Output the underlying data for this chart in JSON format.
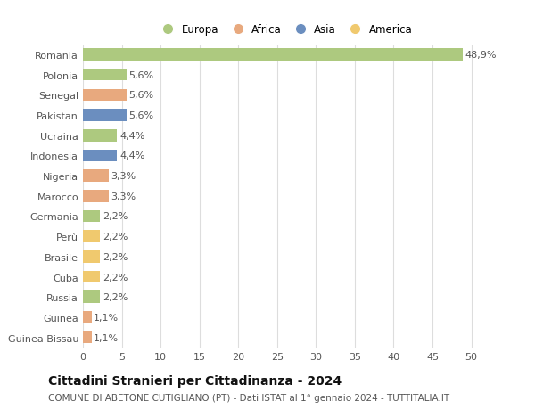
{
  "countries": [
    "Romania",
    "Polonia",
    "Senegal",
    "Pakistan",
    "Ucraina",
    "Indonesia",
    "Nigeria",
    "Marocco",
    "Germania",
    "Perù",
    "Brasile",
    "Cuba",
    "Russia",
    "Guinea",
    "Guinea Bissau"
  ],
  "values": [
    48.9,
    5.6,
    5.6,
    5.6,
    4.4,
    4.4,
    3.3,
    3.3,
    2.2,
    2.2,
    2.2,
    2.2,
    2.2,
    1.1,
    1.1
  ],
  "labels": [
    "48,9%",
    "5,6%",
    "5,6%",
    "5,6%",
    "4,4%",
    "4,4%",
    "3,3%",
    "3,3%",
    "2,2%",
    "2,2%",
    "2,2%",
    "2,2%",
    "2,2%",
    "1,1%",
    "1,1%"
  ],
  "continents": [
    "Europa",
    "Europa",
    "Africa",
    "Asia",
    "Europa",
    "Asia",
    "Africa",
    "Africa",
    "Europa",
    "America",
    "America",
    "America",
    "Europa",
    "Africa",
    "Africa"
  ],
  "continent_colors": {
    "Europa": "#adc97f",
    "Africa": "#e8a97e",
    "Asia": "#6b8ebf",
    "America": "#f0c96e"
  },
  "title": "Cittadini Stranieri per Cittadinanza - 2024",
  "subtitle": "COMUNE DI ABETONE CUTIGLIANO (PT) - Dati ISTAT al 1° gennaio 2024 - TUTTITALIA.IT",
  "xlim": [
    0,
    52
  ],
  "xticks": [
    0,
    5,
    10,
    15,
    20,
    25,
    30,
    35,
    40,
    45,
    50
  ],
  "background_color": "#ffffff",
  "grid_color": "#dddddd",
  "bar_height": 0.6,
  "label_fontsize": 8,
  "tick_fontsize": 8,
  "title_fontsize": 10,
  "subtitle_fontsize": 7.5,
  "legend_order": [
    "Europa",
    "Africa",
    "Asia",
    "America"
  ]
}
